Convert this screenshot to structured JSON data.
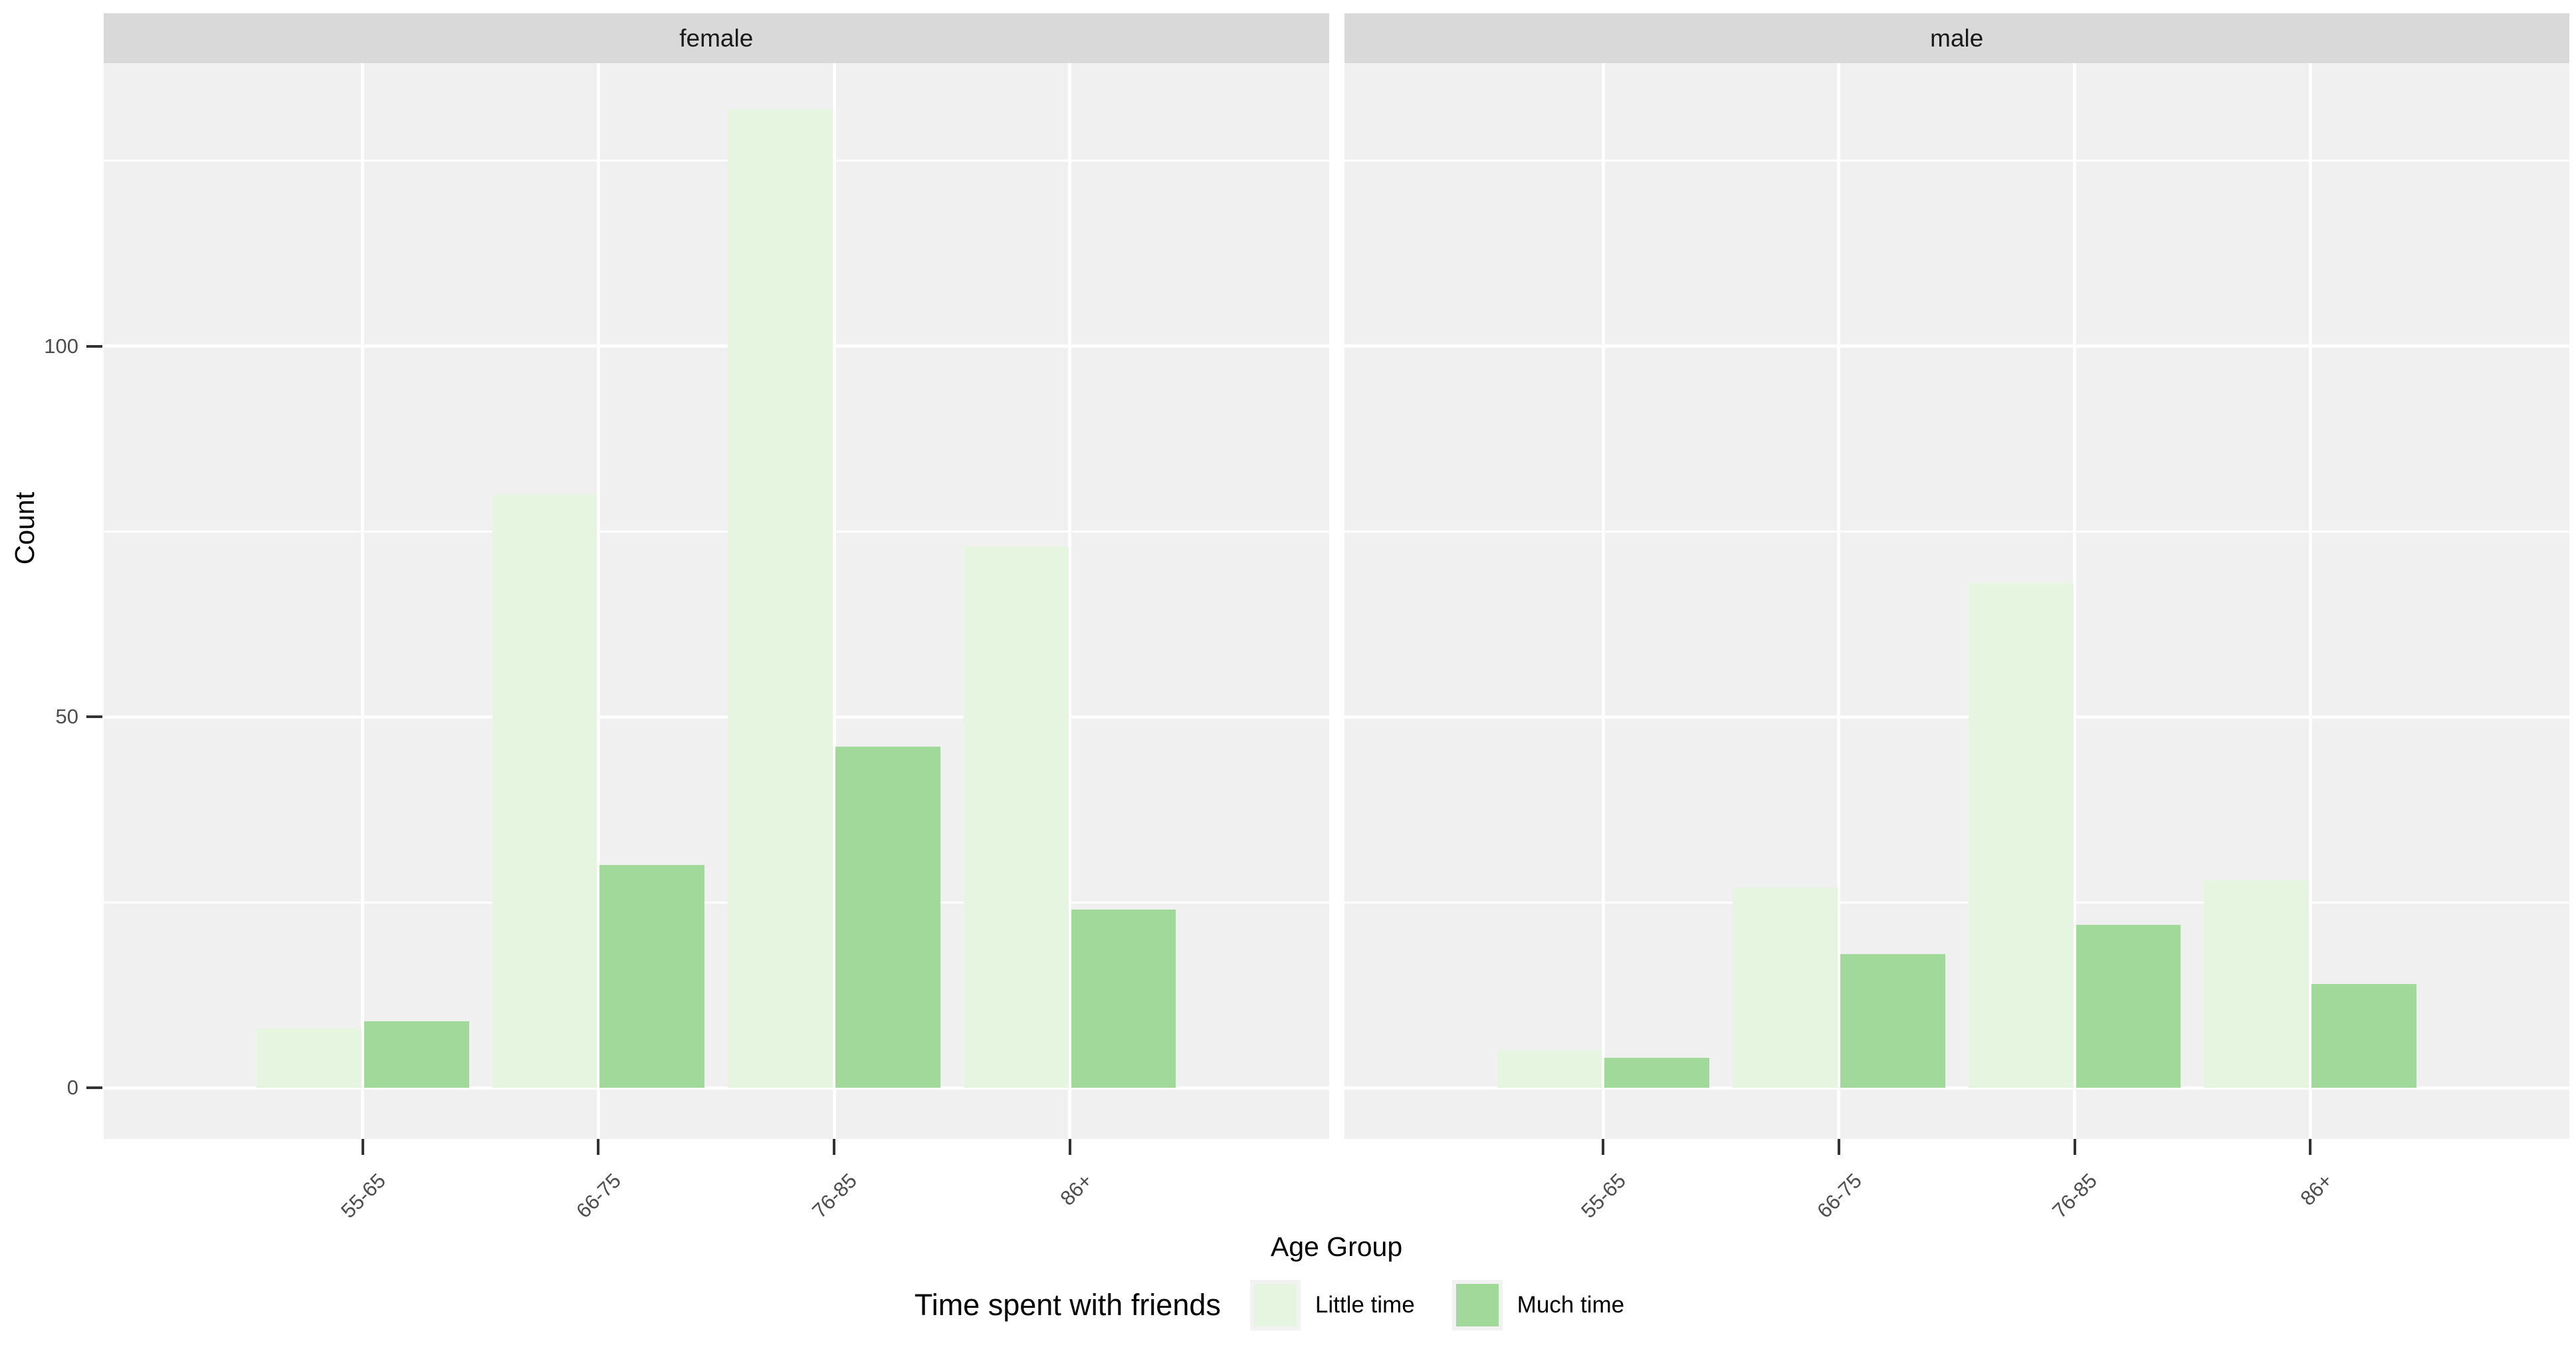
{
  "chart_data": {
    "type": "bar",
    "title": "",
    "facets": [
      "female",
      "male"
    ],
    "categories": [
      "55-65",
      "66-75",
      "76-85",
      "86+"
    ],
    "series": [
      {
        "name": "Little time",
        "color": "#e5f5e0",
        "values_by_facet": {
          "female": [
            8,
            80,
            132,
            73
          ],
          "male": [
            5,
            27,
            68,
            28
          ]
        }
      },
      {
        "name": "Much time",
        "color": "#a1d99b",
        "values_by_facet": {
          "female": [
            9,
            30,
            46,
            24
          ],
          "male": [
            4,
            18,
            22,
            14
          ]
        }
      }
    ],
    "xlabel": "Age Group",
    "ylabel": "Count",
    "y_ticks": [
      0,
      50,
      100
    ],
    "y_minor_gridlines": [
      25,
      75,
      125
    ],
    "ylim": [
      -7,
      138
    ],
    "grid": "white major and minor horizontal lines, white vertical lines at category centers, on gray panel",
    "legend": {
      "position": "bottom",
      "title": "Time spent with friends",
      "entries": [
        "Little time",
        "Much time"
      ]
    }
  },
  "style_colors": {
    "panel_background": "#f0f0f0",
    "strip_background": "#d9d9d9",
    "gridline": "#ffffff",
    "axis_text": "#4d4d4d",
    "title_text": "#000000",
    "little_time_fill": "#e5f5e0",
    "much_time_fill": "#a1d99b"
  }
}
